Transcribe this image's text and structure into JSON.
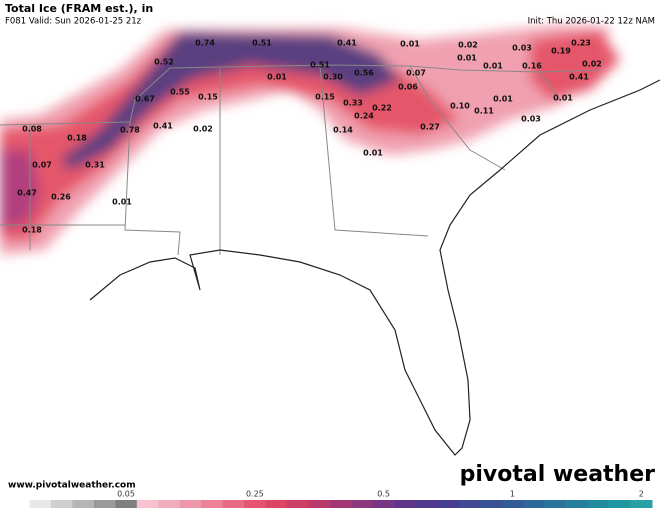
{
  "header": {
    "title": "Total Ice (FRAM est.), in",
    "valid": "F081 Valid: Sun 2026-01-25 21z",
    "init": "Init: Thu 2026-01-22 12z NAM"
  },
  "map_labels": [
    "0.74",
    "0.51",
    "0.41",
    "0.01",
    "0.02",
    "0.03",
    "0.19",
    "0.23",
    "0.52",
    "0.01",
    "0.01",
    "0.16",
    "0.02",
    "0.01",
    "0.51",
    "0.30",
    "0.56",
    "0.07",
    "0.41",
    "0.55",
    "0.15",
    "0.67",
    "0.06",
    "0.15",
    "0.33",
    "0.22",
    "0.10",
    "0.01",
    "0.11",
    "0.01",
    "0.24",
    "0.14",
    "0.27",
    "0.03",
    "0.08",
    "0.18",
    "0.78",
    "0.41",
    "0.02",
    "0.01",
    "0.07",
    "0.31",
    "0.47",
    "0.26",
    "0.01",
    "0.18"
  ],
  "footer": {
    "website": "www.pivotalweather.com",
    "logo": "pivotal weather"
  },
  "colorbar": {
    "ticks": [
      0.05,
      0.25,
      0.5,
      1,
      2
    ]
  }
}
